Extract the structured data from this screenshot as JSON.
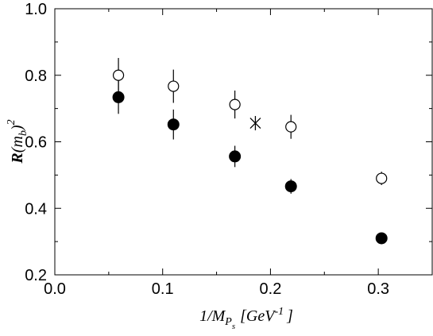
{
  "chart_data": {
    "type": "scatter",
    "x_ticks": [
      "0.0",
      "0.1",
      "0.2",
      "0.3"
    ],
    "y_ticks": [
      "0.2",
      "0.4",
      "0.6",
      "0.8",
      "1.0"
    ],
    "xlim": [
      0,
      0.35
    ],
    "ylim": [
      0.2,
      1.0
    ],
    "grid": false,
    "xlabel": {
      "text": "1/M",
      "sub": "P",
      "subsub": "s",
      "bracket_open": "[GeV",
      "exp": "-1",
      "bracket_close": "]"
    },
    "ylabel": {
      "text": "R",
      "paren_open": "(m",
      "sub": "b",
      "paren_close": ")",
      "exp": "2"
    },
    "series": [
      {
        "marker": "open-circle",
        "points": [
          {
            "x": 0.059,
            "y": 0.8,
            "err": 0.052
          },
          {
            "x": 0.11,
            "y": 0.767,
            "err": 0.05
          },
          {
            "x": 0.167,
            "y": 0.712,
            "err": 0.042
          },
          {
            "x": 0.219,
            "y": 0.645,
            "err": 0.036
          },
          {
            "x": 0.303,
            "y": 0.49,
            "err": 0.02
          }
        ]
      },
      {
        "marker": "filled-circle",
        "points": [
          {
            "x": 0.059,
            "y": 0.734,
            "err": 0.05
          },
          {
            "x": 0.11,
            "y": 0.652,
            "err": 0.045
          },
          {
            "x": 0.167,
            "y": 0.556,
            "err": 0.032
          },
          {
            "x": 0.219,
            "y": 0.466,
            "err": 0.022
          },
          {
            "x": 0.303,
            "y": 0.31,
            "err": 0.008
          }
        ]
      },
      {
        "marker": "asterisk",
        "points": [
          {
            "x": 0.186,
            "y": 0.656,
            "err": 0
          }
        ]
      }
    ]
  }
}
